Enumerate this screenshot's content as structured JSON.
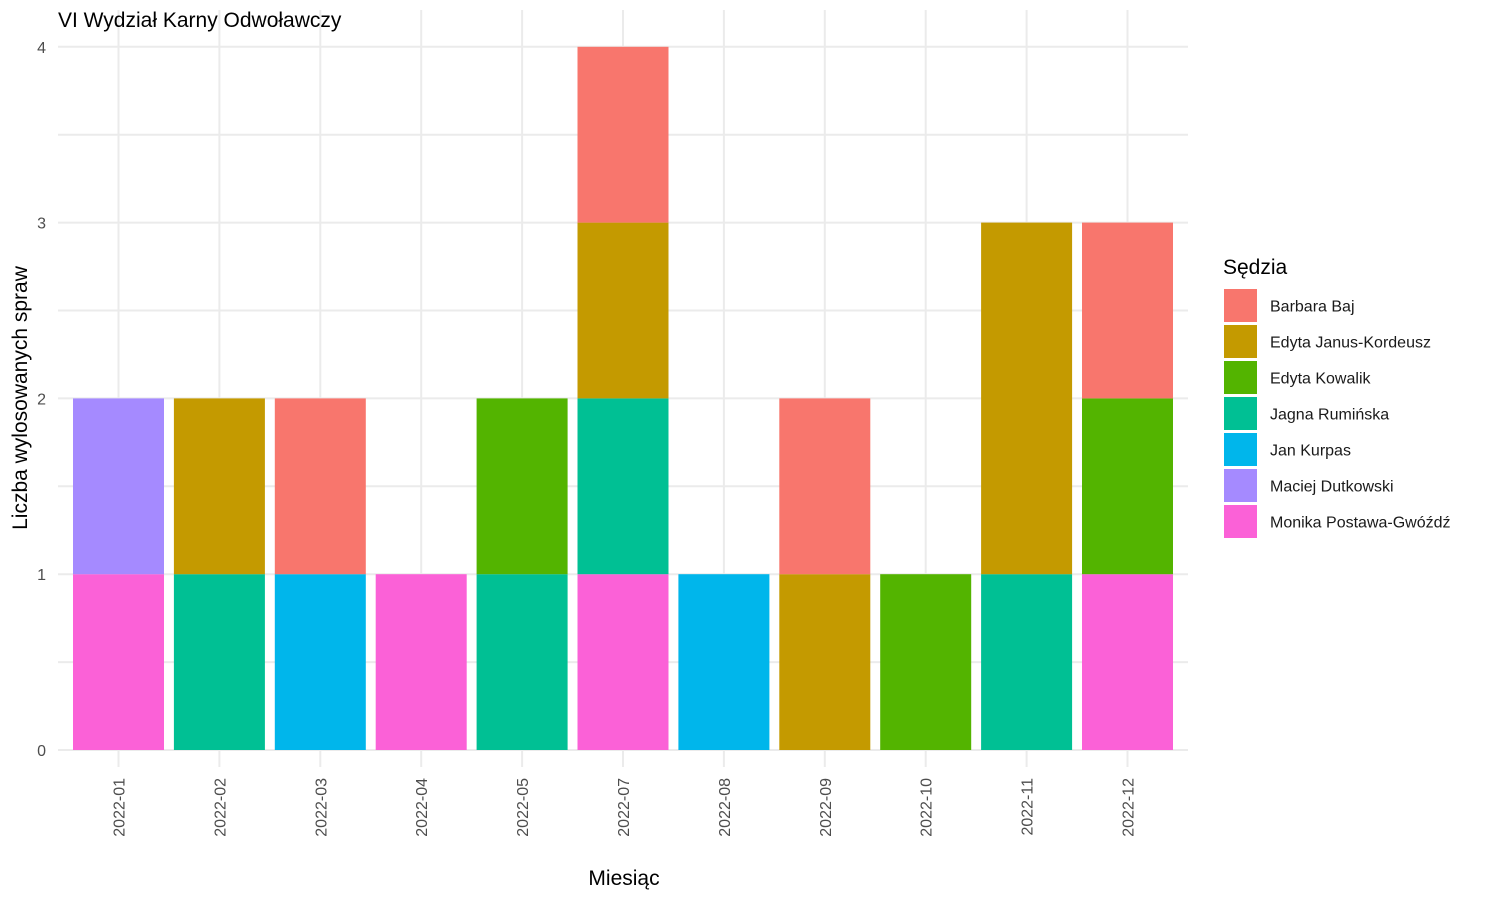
{
  "chart_data": {
    "type": "bar",
    "stacked": true,
    "title": "VI Wydział Karny Odwoławczy",
    "xlabel": "Miesiąc",
    "ylabel": "Liczba wylosowanych spraw",
    "ylim": [
      0,
      4
    ],
    "yticks": [
      "0",
      "1",
      "2",
      "3",
      "4"
    ],
    "grid": true,
    "legend_title": "Sędzia",
    "legend_position": "right",
    "categories": [
      "2022-01",
      "2022-02",
      "2022-03",
      "2022-04",
      "2022-05",
      "2022-07",
      "2022-08",
      "2022-09",
      "2022-10",
      "2022-11",
      "2022-12"
    ],
    "series": [
      {
        "name": "Barbara Baj",
        "color": "#F8766D",
        "values": [
          0,
          0,
          1,
          0,
          0,
          1,
          0,
          1,
          0,
          0,
          1
        ]
      },
      {
        "name": "Edyta Janus-Kordeusz",
        "color": "#C49A00",
        "values": [
          0,
          1,
          0,
          0,
          0,
          1,
          0,
          1,
          0,
          2,
          0
        ]
      },
      {
        "name": "Edyta Kowalik",
        "color": "#53B400",
        "values": [
          0,
          0,
          0,
          0,
          1,
          0,
          0,
          0,
          1,
          0,
          1
        ]
      },
      {
        "name": "Jagna Rumińska",
        "color": "#00C094",
        "values": [
          0,
          1,
          0,
          0,
          1,
          1,
          0,
          0,
          0,
          1,
          0
        ]
      },
      {
        "name": "Jan Kurpas",
        "color": "#00B6EB",
        "values": [
          0,
          0,
          1,
          0,
          0,
          0,
          1,
          0,
          0,
          0,
          0
        ]
      },
      {
        "name": "Maciej Dutkowski",
        "color": "#A58AFF",
        "values": [
          1,
          0,
          0,
          0,
          0,
          0,
          0,
          0,
          0,
          0,
          0
        ]
      },
      {
        "name": "Monika Postawa-Gwóźdź",
        "color": "#FB61D7",
        "values": [
          1,
          0,
          0,
          1,
          0,
          1,
          0,
          0,
          0,
          0,
          1
        ]
      }
    ]
  }
}
